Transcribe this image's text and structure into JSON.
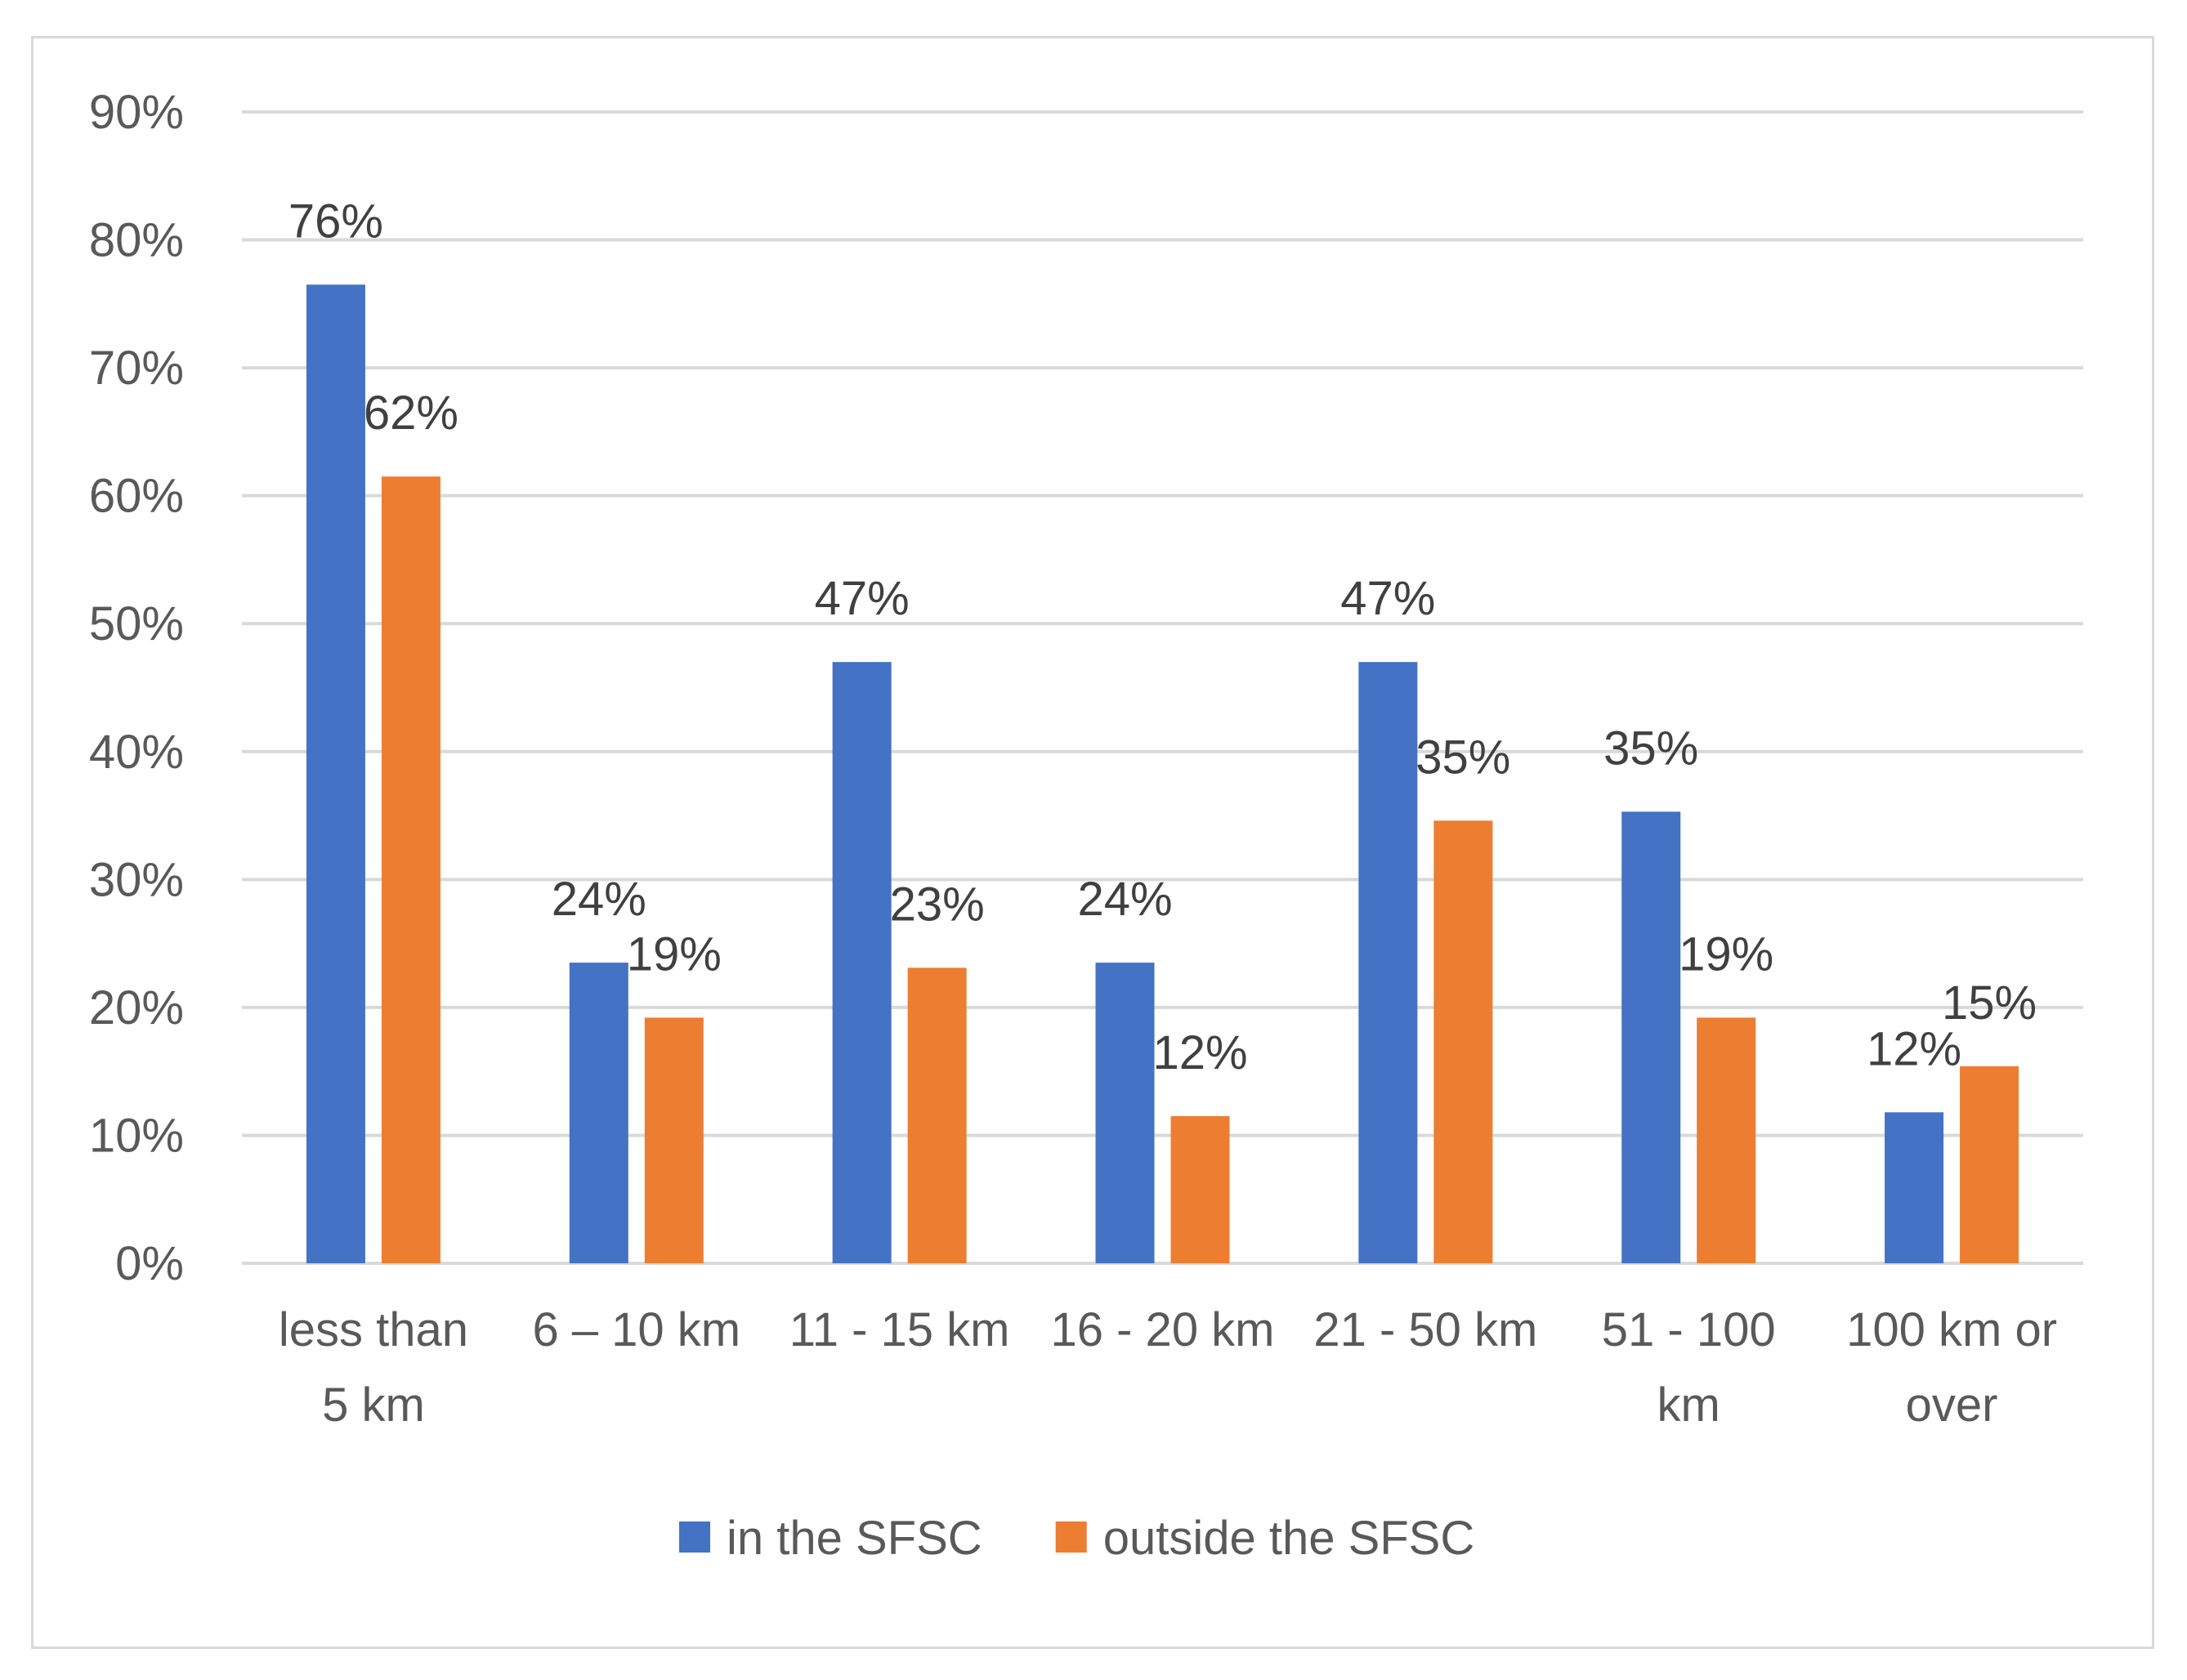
{
  "chart_data": {
    "type": "bar",
    "title": "",
    "xlabel": "",
    "ylabel": "",
    "ylim": [
      0,
      90
    ],
    "yticks": [
      "0%",
      "10%",
      "20%",
      "30%",
      "40%",
      "50%",
      "60%",
      "70%",
      "80%",
      "90%"
    ],
    "grid": true,
    "legend_position": "bottom",
    "categories": [
      [
        "less than",
        "5 km"
      ],
      [
        "6 – 10 km"
      ],
      [
        "11 - 15 km"
      ],
      [
        "16 - 20 km"
      ],
      [
        "21 - 50 km"
      ],
      [
        "51 - 100",
        "km"
      ],
      [
        "100 km or",
        "over"
      ]
    ],
    "series": [
      {
        "name": "in the SFSC",
        "color": "#4472C4",
        "values": [
          76.5,
          23.5,
          47.0,
          23.5,
          47.0,
          35.3,
          11.8
        ],
        "labels": [
          "76%",
          "24%",
          "47%",
          "24%",
          "47%",
          "35%",
          "12%"
        ]
      },
      {
        "name": "outside the SFSC",
        "color": "#ED7D31",
        "values": [
          61.5,
          19.2,
          23.1,
          11.5,
          34.6,
          19.2,
          15.4
        ],
        "labels": [
          "62%",
          "19%",
          "23%",
          "12%",
          "35%",
          "19%",
          "15%"
        ]
      }
    ]
  }
}
